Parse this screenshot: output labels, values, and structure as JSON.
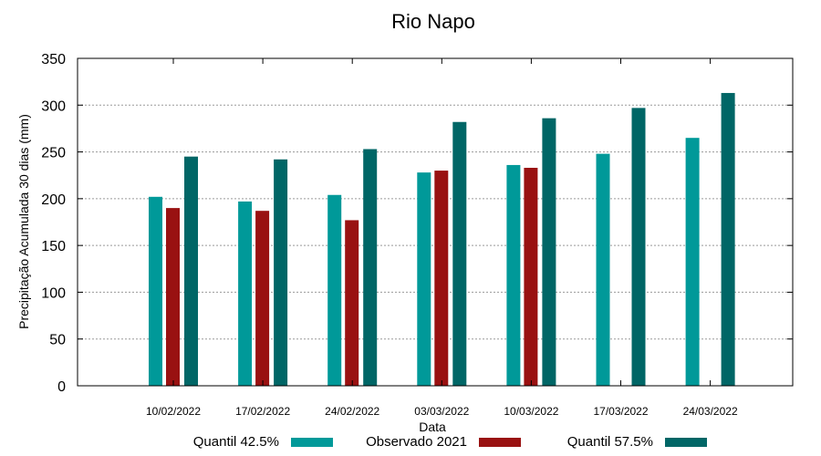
{
  "chart_data": {
    "type": "bar",
    "title": "Rio Napo",
    "xlabel": "Data",
    "ylabel": "Precipitação Acumulada 30 dias (mm)",
    "ylim": [
      0,
      350
    ],
    "yticks": [
      0,
      50,
      100,
      150,
      200,
      250,
      300,
      350
    ],
    "grid": true,
    "legend_position": "bottom",
    "categories": [
      "10/02/2022",
      "17/02/2022",
      "24/02/2022",
      "03/03/2022",
      "10/03/2022",
      "17/03/2022",
      "24/03/2022"
    ],
    "series": [
      {
        "name": "Quantil 42.5%",
        "color": "#009999",
        "values": [
          202,
          197,
          204,
          228,
          236,
          248,
          265
        ]
      },
      {
        "name": "Observado 2021",
        "color": "#991111",
        "values": [
          190,
          187,
          177,
          230,
          233,
          null,
          null
        ]
      },
      {
        "name": "Quantil 57.5%",
        "color": "#006666",
        "values": [
          245,
          242,
          253,
          282,
          286,
          297,
          313
        ]
      }
    ]
  }
}
